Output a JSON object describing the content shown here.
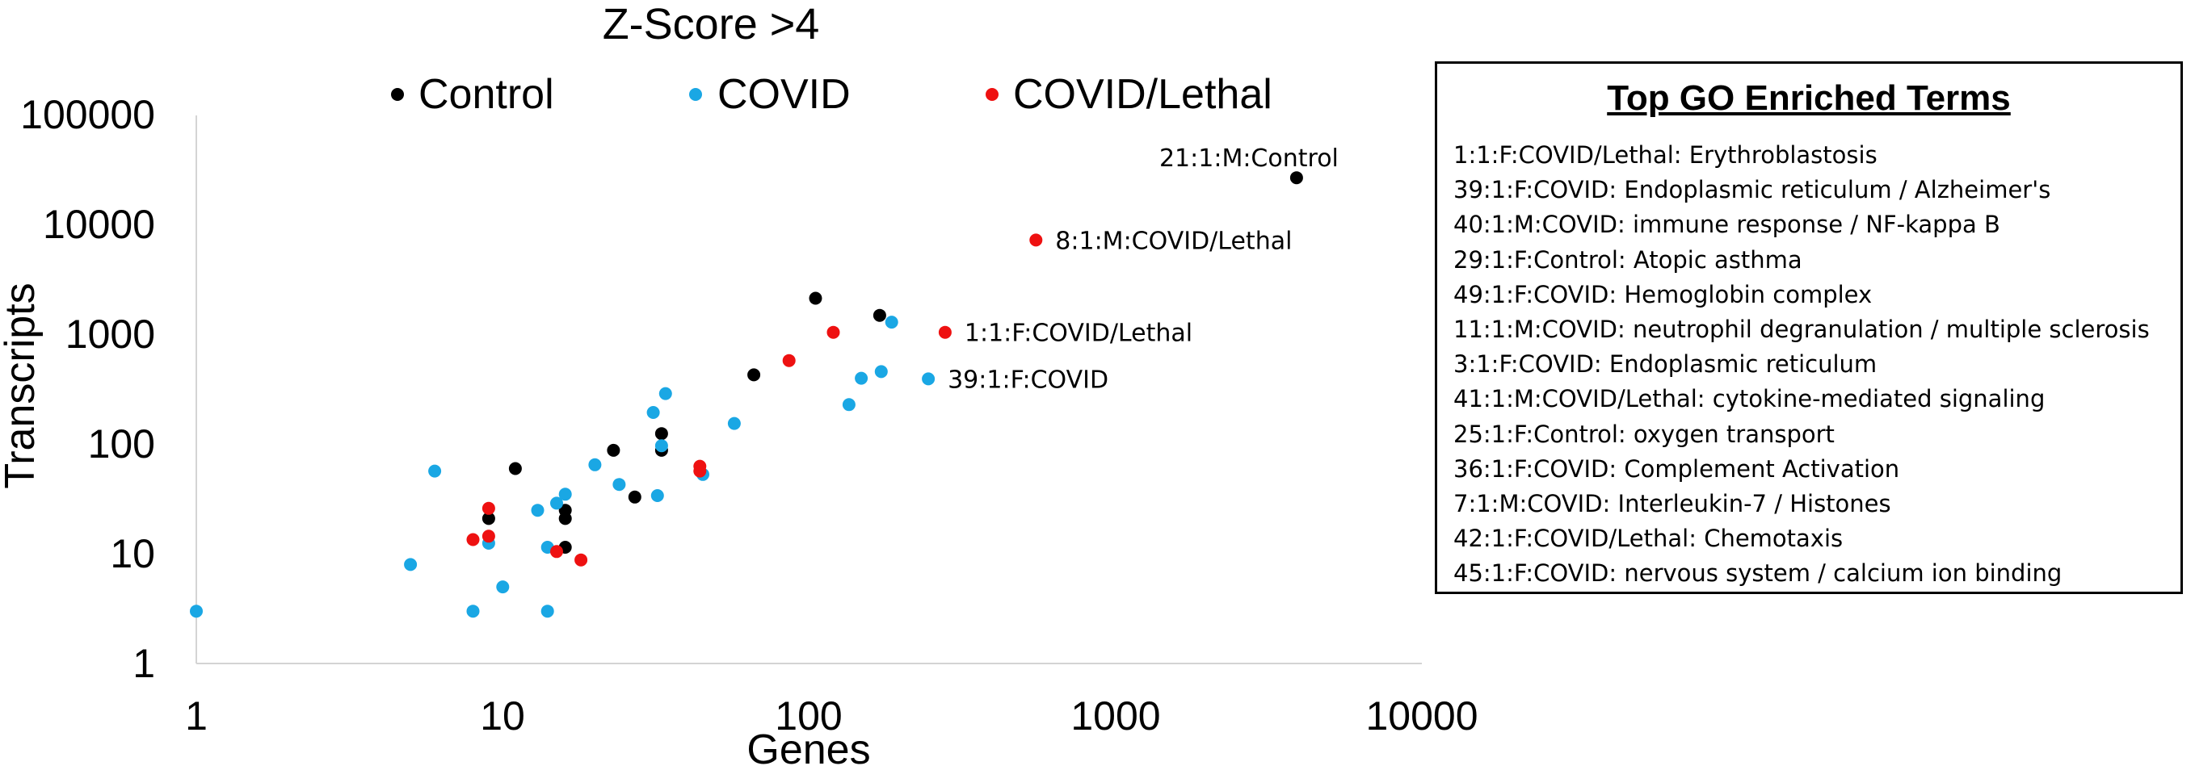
{
  "chart_data": {
    "type": "scatter",
    "title": "Z-Score >4",
    "xlabel": "Genes",
    "ylabel": "Transcripts",
    "xscale": "log",
    "yscale": "log",
    "xlim": [
      1,
      10000
    ],
    "ylim": [
      1,
      100000
    ],
    "x_ticks": [
      "1",
      "10",
      "100",
      "1000",
      "10000"
    ],
    "y_ticks": [
      "1",
      "10",
      "100",
      "1000",
      "10000",
      "100000"
    ],
    "legend": [
      "Control",
      "COVID",
      "COVID/Lethal"
    ],
    "legend_position": "top",
    "series": [
      {
        "name": "Control",
        "color": "#000000",
        "points": [
          {
            "x": 9,
            "y": 21
          },
          {
            "x": 11,
            "y": 60
          },
          {
            "x": 16,
            "y": 25
          },
          {
            "x": 16,
            "y": 21
          },
          {
            "x": 16,
            "y": 11.5
          },
          {
            "x": 23,
            "y": 88
          },
          {
            "x": 27,
            "y": 33
          },
          {
            "x": 33,
            "y": 125
          },
          {
            "x": 33,
            "y": 88
          },
          {
            "x": 66,
            "y": 430
          },
          {
            "x": 105,
            "y": 2150
          },
          {
            "x": 170,
            "y": 1500
          },
          {
            "x": 3900,
            "y": 27000
          }
        ]
      },
      {
        "name": "COVID",
        "color": "#1aa7e4",
        "points": [
          {
            "x": 1,
            "y": 3
          },
          {
            "x": 5,
            "y": 8
          },
          {
            "x": 6,
            "y": 57
          },
          {
            "x": 8,
            "y": 3
          },
          {
            "x": 9,
            "y": 12.5
          },
          {
            "x": 10,
            "y": 5
          },
          {
            "x": 13,
            "y": 25
          },
          {
            "x": 14,
            "y": 11.5
          },
          {
            "x": 14,
            "y": 3
          },
          {
            "x": 15,
            "y": 29
          },
          {
            "x": 16,
            "y": 35
          },
          {
            "x": 20,
            "y": 65
          },
          {
            "x": 24,
            "y": 43
          },
          {
            "x": 31,
            "y": 195
          },
          {
            "x": 32,
            "y": 34
          },
          {
            "x": 33,
            "y": 97
          },
          {
            "x": 34,
            "y": 290
          },
          {
            "x": 45,
            "y": 53
          },
          {
            "x": 57,
            "y": 155
          },
          {
            "x": 135,
            "y": 230
          },
          {
            "x": 148,
            "y": 400
          },
          {
            "x": 172,
            "y": 460
          },
          {
            "x": 186,
            "y": 1300
          },
          {
            "x": 245,
            "y": 395
          }
        ]
      },
      {
        "name": "COVID/Lethal",
        "color": "#ee1111",
        "points": [
          {
            "x": 8,
            "y": 13.5
          },
          {
            "x": 9,
            "y": 26
          },
          {
            "x": 9,
            "y": 14.5
          },
          {
            "x": 15,
            "y": 10.5
          },
          {
            "x": 18,
            "y": 8.8
          },
          {
            "x": 44,
            "y": 63
          },
          {
            "x": 44,
            "y": 57
          },
          {
            "x": 86,
            "y": 580
          },
          {
            "x": 120,
            "y": 1050
          },
          {
            "x": 278,
            "y": 1050
          },
          {
            "x": 550,
            "y": 7300
          }
        ]
      }
    ],
    "annotations": [
      {
        "text": "21:1:M:Control",
        "x": 3900,
        "y": 27000
      },
      {
        "text": "8:1:M:COVID/Lethal",
        "x": 550,
        "y": 7300
      },
      {
        "text": "1:1:F:COVID/Lethal",
        "x": 278,
        "y": 1050
      },
      {
        "text": "39:1:F:COVID",
        "x": 245,
        "y": 395
      }
    ]
  },
  "go_panel": {
    "title": "Top GO Enriched Terms",
    "items": [
      " 1:1:F:COVID/Lethal: Erythroblastosis",
      "39:1:F:COVID: Endoplasmic reticulum / Alzheimer's",
      "40:1:M:COVID: immune response / NF-kappa B",
      "29:1:F:Control: Atopic asthma",
      "49:1:F:COVID: Hemoglobin complex",
      "11:1:M:COVID: neutrophil degranulation / multiple sclerosis",
      " 3:1:F:COVID: Endoplasmic reticulum",
      "41:1:M:COVID/Lethal: cytokine-mediated signaling",
      "25:1:F:Control: oxygen transport",
      "36:1:F:COVID: Complement Activation",
      " 7:1:M:COVID: Interleukin-7 / Histones",
      "42:1:F:COVID/Lethal: Chemotaxis",
      "45:1:F:COVID: nervous system / calcium ion binding"
    ]
  }
}
